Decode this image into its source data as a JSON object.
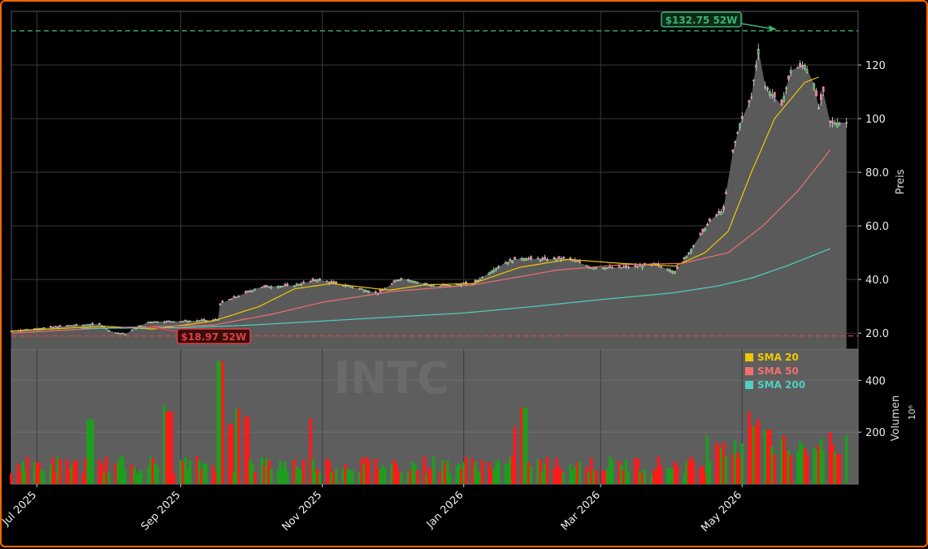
{
  "ticker": "INTC",
  "watermark": "...",
  "chart_data": {
    "type": "candlestick",
    "price_axis_label": "Preis",
    "volume_axis_label": "Volumen",
    "volume_unit": "10⁶",
    "price_ticks": [
      20,
      40,
      60,
      80,
      100,
      120
    ],
    "price_tick_labels": [
      "20.0",
      "40.0",
      "60.0",
      "80.0",
      "100",
      "120"
    ],
    "ylim_price": [
      14,
      140
    ],
    "volume_ticks": [
      200,
      400
    ],
    "volume_tick_labels": [
      "200",
      "400"
    ],
    "ylim_volume": [
      0,
      520
    ],
    "date_ticks": [
      "2025-07-01",
      "2025-09-01",
      "2025-11-01",
      "2026-01-01",
      "2026-03-01",
      "2026-05-01"
    ],
    "date_tick_labels": [
      "Jul 2025",
      "Sep 2025",
      "Nov 2025",
      "Jan 2026",
      "Mar 2026",
      "May 2026"
    ],
    "xlim": [
      "2025-06-20",
      "2026-06-20"
    ],
    "high_52w": {
      "value": 132.75,
      "label": "$132.75 52W",
      "color": "#3cb371"
    },
    "low_52w": {
      "value": 18.97,
      "label": "$18.97 52W",
      "color": "#e04040"
    },
    "legend": {
      "position": "top-right of volume panel",
      "items": [
        {
          "label": "SMA 20",
          "color": "#f0c800"
        },
        {
          "label": "SMA 50",
          "color": "#f07070"
        },
        {
          "label": "SMA 200",
          "color": "#50d0c0"
        }
      ]
    },
    "close_anchors": [
      [
        "2025-06-20",
        20.8
      ],
      [
        "2025-07-15",
        22.8
      ],
      [
        "2025-07-28",
        23.4
      ],
      [
        "2025-08-02",
        20.5
      ],
      [
        "2025-08-08",
        19.6
      ],
      [
        "2025-08-12",
        21.5
      ],
      [
        "2025-08-18",
        24.2
      ],
      [
        "2025-09-05",
        24.5
      ],
      [
        "2025-09-17",
        25.0
      ],
      [
        "2025-09-18",
        31.0
      ],
      [
        "2025-09-25",
        33.5
      ],
      [
        "2025-10-05",
        37.2
      ],
      [
        "2025-10-20",
        37.8
      ],
      [
        "2025-10-30",
        40.0
      ],
      [
        "2025-11-10",
        38.0
      ],
      [
        "2025-11-25",
        35.0
      ],
      [
        "2025-12-05",
        40.5
      ],
      [
        "2025-12-20",
        37.5
      ],
      [
        "2026-01-05",
        38.5
      ],
      [
        "2026-01-18",
        46.0
      ],
      [
        "2026-01-25",
        48.0
      ],
      [
        "2026-02-05",
        47.5
      ],
      [
        "2026-02-15",
        48.0
      ],
      [
        "2026-02-25",
        44.5
      ],
      [
        "2026-03-10",
        44.5
      ],
      [
        "2026-03-25",
        45.5
      ],
      [
        "2026-04-02",
        43.0
      ],
      [
        "2026-04-08",
        50.0
      ],
      [
        "2026-04-18",
        63.0
      ],
      [
        "2026-04-23",
        66.0
      ],
      [
        "2026-04-26",
        84.0
      ],
      [
        "2026-04-30",
        98.0
      ],
      [
        "2026-05-05",
        108.0
      ],
      [
        "2026-05-08",
        126.0
      ],
      [
        "2026-05-11",
        112.0
      ],
      [
        "2026-05-18",
        105.0
      ],
      [
        "2026-05-22",
        118.0
      ],
      [
        "2026-05-28",
        120.0
      ],
      [
        "2026-06-01",
        113.0
      ],
      [
        "2026-06-03",
        104.0
      ],
      [
        "2026-06-05",
        110.0
      ],
      [
        "2026-06-06",
        98.5
      ],
      [
        "2026-06-15",
        98.5
      ]
    ],
    "sma20_anchors": [
      [
        "2025-06-20",
        20.8
      ],
      [
        "2025-07-30",
        22.6
      ],
      [
        "2025-08-20",
        21.5
      ],
      [
        "2025-09-15",
        24.5
      ],
      [
        "2025-10-05",
        30.0
      ],
      [
        "2025-10-20",
        36.5
      ],
      [
        "2025-11-05",
        38.5
      ],
      [
        "2025-11-30",
        36.0
      ],
      [
        "2025-12-15",
        38.0
      ],
      [
        "2026-01-05",
        38.5
      ],
      [
        "2026-01-25",
        44.5
      ],
      [
        "2026-02-15",
        47.5
      ],
      [
        "2026-03-10",
        46.0
      ],
      [
        "2026-04-02",
        45.0
      ],
      [
        "2026-04-15",
        50.0
      ],
      [
        "2026-04-25",
        58.0
      ],
      [
        "2026-05-05",
        80.0
      ],
      [
        "2026-05-15",
        100.0
      ],
      [
        "2026-05-28",
        113.5
      ],
      [
        "2026-06-03",
        115.5
      ]
    ],
    "sma50_anchors": [
      [
        "2025-06-20",
        20.0
      ],
      [
        "2025-08-01",
        22.0
      ],
      [
        "2025-09-15",
        23.0
      ],
      [
        "2025-10-10",
        27.0
      ],
      [
        "2025-11-01",
        31.5
      ],
      [
        "2025-12-01",
        35.5
      ],
      [
        "2026-01-05",
        38.0
      ],
      [
        "2026-01-25",
        41.0
      ],
      [
        "2026-02-10",
        43.5
      ],
      [
        "2026-03-10",
        45.5
      ],
      [
        "2026-04-05",
        46.0
      ],
      [
        "2026-04-25",
        50.0
      ],
      [
        "2026-05-10",
        60.0
      ],
      [
        "2026-05-25",
        73.0
      ],
      [
        "2026-06-05",
        85.0
      ],
      [
        "2026-06-08",
        88.5
      ]
    ],
    "sma200_anchors": [
      [
        "2025-07-20",
        21.8
      ],
      [
        "2025-09-01",
        22.0
      ],
      [
        "2025-10-01",
        23.0
      ],
      [
        "2025-11-01",
        24.5
      ],
      [
        "2025-12-01",
        26.0
      ],
      [
        "2026-01-01",
        27.5
      ],
      [
        "2026-02-01",
        30.0
      ],
      [
        "2026-03-01",
        32.5
      ],
      [
        "2026-04-01",
        35.0
      ],
      [
        "2026-04-20",
        37.5
      ],
      [
        "2026-05-05",
        40.5
      ],
      [
        "2026-05-20",
        45.0
      ],
      [
        "2026-06-08",
        51.5
      ]
    ],
    "volume_spikes": [
      [
        "2025-09-18",
        475
      ],
      [
        "2025-09-22",
        230
      ],
      [
        "2025-09-26",
        290
      ],
      [
        "2025-09-29",
        260
      ],
      [
        "2025-08-25",
        305
      ],
      [
        "2025-08-27",
        280
      ],
      [
        "2025-10-26",
        255
      ],
      [
        "2025-07-24",
        250
      ],
      [
        "2026-01-27",
        295
      ],
      [
        "2026-05-04",
        280
      ],
      [
        "2026-05-08",
        250
      ],
      [
        "2026-05-06",
        225
      ],
      [
        "2026-01-24",
        220
      ],
      [
        "2026-06-07",
        200
      ],
      [
        "2026-05-12",
        210
      ]
    ]
  }
}
